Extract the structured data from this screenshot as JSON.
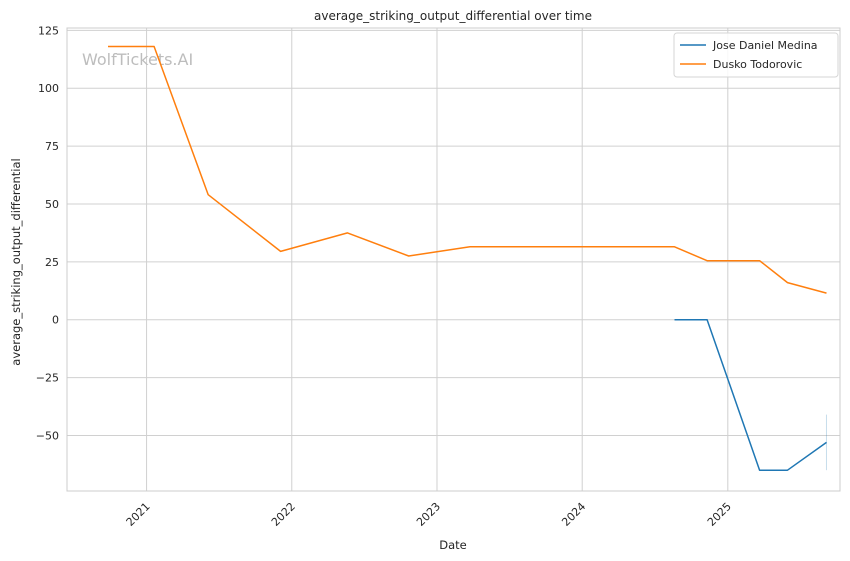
{
  "chart_data": {
    "type": "line",
    "title": "average_striking_output_differential over time",
    "xlabel": "Date",
    "ylabel": "average_striking_output_differential",
    "watermark": "WolfTickets.AI",
    "xlim": [
      "2020-06-15",
      "2025-10-10"
    ],
    "ylim": [
      -74,
      126
    ],
    "x_ticks": [
      "2021-01-01",
      "2022-01-01",
      "2023-01-01",
      "2024-01-01",
      "2025-01-01"
    ],
    "x_tick_labels": [
      "2021",
      "2022",
      "2023",
      "2024",
      "2025"
    ],
    "y_ticks": [
      -50,
      -25,
      0,
      25,
      50,
      75,
      100,
      125
    ],
    "y_tick_labels": [
      "−50",
      "−25",
      "0",
      "25",
      "50",
      "75",
      "100",
      "125"
    ],
    "grid": true,
    "legend_position": "top-right",
    "series": [
      {
        "name": "Jose Daniel Medina",
        "color": "#1f77b4",
        "x": [
          "2024-08-20",
          "2024-11-10",
          "2025-03-22",
          "2025-05-31",
          "2025-09-06"
        ],
        "y": [
          0,
          0,
          -65,
          -65,
          -53
        ],
        "error_bar": {
          "x": "2025-09-06",
          "low": -65,
          "high": -41
        }
      },
      {
        "name": "Dusko Todorovic",
        "color": "#ff7f0e",
        "x": [
          "2020-09-26",
          "2021-01-20",
          "2021-06-05",
          "2021-12-04",
          "2022-05-21",
          "2022-10-22",
          "2023-03-25",
          "2024-08-20",
          "2024-11-10",
          "2025-03-22",
          "2025-05-31",
          "2025-09-06"
        ],
        "y": [
          118,
          118,
          54,
          29.5,
          37.5,
          27.5,
          31.5,
          31.5,
          25.5,
          25.5,
          16,
          11.5
        ]
      }
    ]
  }
}
